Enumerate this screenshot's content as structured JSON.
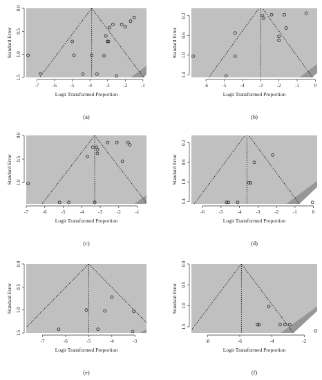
{
  "chart_data": [
    {
      "type": "scatter",
      "panel_label": "(a)",
      "xlabel": "Logit Transformed Proportion",
      "ylabel": "Standard Error",
      "xlim": [
        -7.6,
        -0.8
      ],
      "ylim": [
        0,
        1.5
      ],
      "xticks": [
        -7,
        -6,
        -5,
        -4,
        -3,
        -2,
        -1
      ],
      "yticks": [
        "0.0",
        "0.5",
        "1.0",
        "1.5"
      ],
      "pooled_estimate": -3.9,
      "funnel_base_se": 1.5,
      "series": [
        {
          "values": [
            {
              "x": -7.5,
              "y": 1.02
            },
            {
              "x": -6.8,
              "y": 1.42
            },
            {
              "x": -5.0,
              "y": 0.72
            },
            {
              "x": -4.9,
              "y": 1.02
            },
            {
              "x": -4.4,
              "y": 1.43
            },
            {
              "x": -3.9,
              "y": 1.02
            },
            {
              "x": -3.6,
              "y": 1.43
            },
            {
              "x": -3.2,
              "y": 1.03
            },
            {
              "x": -3.1,
              "y": 0.6
            },
            {
              "x": -3.0,
              "y": 0.72
            },
            {
              "x": -2.95,
              "y": 0.72
            },
            {
              "x": -2.7,
              "y": 0.35
            },
            {
              "x": -2.9,
              "y": 0.42
            },
            {
              "x": -2.2,
              "y": 0.35
            },
            {
              "x": -2.0,
              "y": 0.4
            },
            {
              "x": -1.7,
              "y": 0.28
            },
            {
              "x": -1.5,
              "y": 0.2
            },
            {
              "x": -2.5,
              "y": 1.47
            }
          ]
        }
      ]
    },
    {
      "type": "scatter",
      "panel_label": "(b)",
      "xlabel": "Logit Transformed Proportion",
      "ylabel": "Standard Error",
      "xlim": [
        -6.8,
        0.1
      ],
      "ylim": [
        0.05,
        1.45
      ],
      "xticks": [
        -6,
        -5,
        -4,
        -3,
        -2,
        -1,
        0
      ],
      "yticks": [
        "0.2",
        "0.6",
        "1.0",
        "1.4"
      ],
      "pooled_estimate": -3.0,
      "funnel_base_se": 1.45,
      "series": [
        {
          "values": [
            {
              "x": -6.7,
              "y": 1.02
            },
            {
              "x": -4.9,
              "y": 1.42
            },
            {
              "x": -4.4,
              "y": 0.55
            },
            {
              "x": -4.4,
              "y": 1.02
            },
            {
              "x": -2.9,
              "y": 0.2
            },
            {
              "x": -2.85,
              "y": 0.25
            },
            {
              "x": -2.4,
              "y": 0.18
            },
            {
              "x": -1.7,
              "y": 0.18
            },
            {
              "x": -2.0,
              "y": 0.62
            },
            {
              "x": -2.0,
              "y": 0.7
            },
            {
              "x": -1.6,
              "y": 0.45
            },
            {
              "x": -0.5,
              "y": 0.15
            }
          ]
        }
      ]
    },
    {
      "type": "scatter",
      "panel_label": "(c)",
      "xlabel": "Logit Transformed Proportion",
      "ylabel": "Standard Error",
      "xlim": [
        -7.0,
        -0.5
      ],
      "ylim": [
        0,
        1.45
      ],
      "xticks": [
        -7,
        -6,
        -5,
        -4,
        -3,
        -2,
        -1
      ],
      "yticks": [
        "0.0",
        "0.5",
        "1.0"
      ],
      "pooled_estimate": -3.3,
      "funnel_base_se": 1.45,
      "series": [
        {
          "values": [
            {
              "x": -6.9,
              "y": 1.02
            },
            {
              "x": -5.2,
              "y": 1.42
            },
            {
              "x": -4.7,
              "y": 1.42
            },
            {
              "x": -3.7,
              "y": 0.45
            },
            {
              "x": -3.4,
              "y": 0.25
            },
            {
              "x": -3.2,
              "y": 0.25
            },
            {
              "x": -3.15,
              "y": 0.3
            },
            {
              "x": -3.15,
              "y": 0.38
            },
            {
              "x": -2.6,
              "y": 0.15
            },
            {
              "x": -2.1,
              "y": 0.15
            },
            {
              "x": -1.8,
              "y": 0.55
            },
            {
              "x": -1.5,
              "y": 0.15
            },
            {
              "x": -1.4,
              "y": 0.2
            },
            {
              "x": -3.3,
              "y": 1.42
            }
          ]
        }
      ]
    },
    {
      "type": "scatter",
      "panel_label": "(d)",
      "xlabel": "Logit Transformed Proportion",
      "ylabel": "Standard Error",
      "xlim": [
        -6.6,
        0.2
      ],
      "ylim": [
        0.05,
        1.45
      ],
      "xticks": [
        -6,
        -5,
        -4,
        -3,
        -2,
        -1,
        0
      ],
      "yticks": [
        "0.2",
        "0.6",
        "1.0",
        "1.4"
      ],
      "pooled_estimate": -3.6,
      "funnel_base_se": 1.45,
      "series": [
        {
          "values": [
            {
              "x": -4.7,
              "y": 1.42
            },
            {
              "x": -4.6,
              "y": 1.42
            },
            {
              "x": -4.1,
              "y": 1.42
            },
            {
              "x": -3.5,
              "y": 1.02
            },
            {
              "x": -3.4,
              "y": 1.02
            },
            {
              "x": -3.2,
              "y": 0.6
            },
            {
              "x": -2.2,
              "y": 0.45
            },
            {
              "x": -0.05,
              "y": 1.42
            }
          ]
        }
      ]
    },
    {
      "type": "scatter",
      "panel_label": "(e)",
      "xlabel": "Logit Transformed Proportion",
      "ylabel": "Standard Error",
      "xlim": [
        -7.7,
        -2.5
      ],
      "ylim": [
        0,
        1.5
      ],
      "xticks": [
        -7,
        -6,
        -5,
        -4,
        -3
      ],
      "yticks": [
        "0.0",
        "0.5",
        "1.0",
        "1.5"
      ],
      "pooled_estimate": -5.0,
      "funnel_base_se": 1.5,
      "series": [
        {
          "values": [
            {
              "x": -6.3,
              "y": 1.42
            },
            {
              "x": -5.1,
              "y": 1.0
            },
            {
              "x": -4.6,
              "y": 1.42
            },
            {
              "x": -4.3,
              "y": 1.02
            },
            {
              "x": -4.0,
              "y": 0.72
            },
            {
              "x": -3.05,
              "y": 1.03
            },
            {
              "x": -3.1,
              "y": 1.47
            }
          ]
        }
      ]
    },
    {
      "type": "scatter",
      "panel_label": "(f)",
      "xlabel": "Logit Transformed Proportion",
      "ylabel": "Standard Error",
      "xlim": [
        -9.0,
        -1.2
      ],
      "ylim": [
        0,
        1.65
      ],
      "xticks": [
        -8,
        -6,
        -4,
        -2
      ],
      "yticks": [
        "0.0",
        "0.5",
        "1.0",
        "1.5"
      ],
      "pooled_estimate": -5.9,
      "funnel_base_se": 1.65,
      "series": [
        {
          "values": [
            {
              "x": -4.9,
              "y": 1.45
            },
            {
              "x": -4.8,
              "y": 1.45
            },
            {
              "x": -4.2,
              "y": 1.02
            },
            {
              "x": -3.5,
              "y": 1.45
            },
            {
              "x": -3.2,
              "y": 1.45
            },
            {
              "x": -2.9,
              "y": 1.45
            },
            {
              "x": -1.3,
              "y": 1.6
            }
          ]
        }
      ]
    }
  ],
  "colors": {
    "funnel_region": "#c0c0c0",
    "missing_region": "#8a8a8a",
    "point_stroke": "#222222"
  }
}
